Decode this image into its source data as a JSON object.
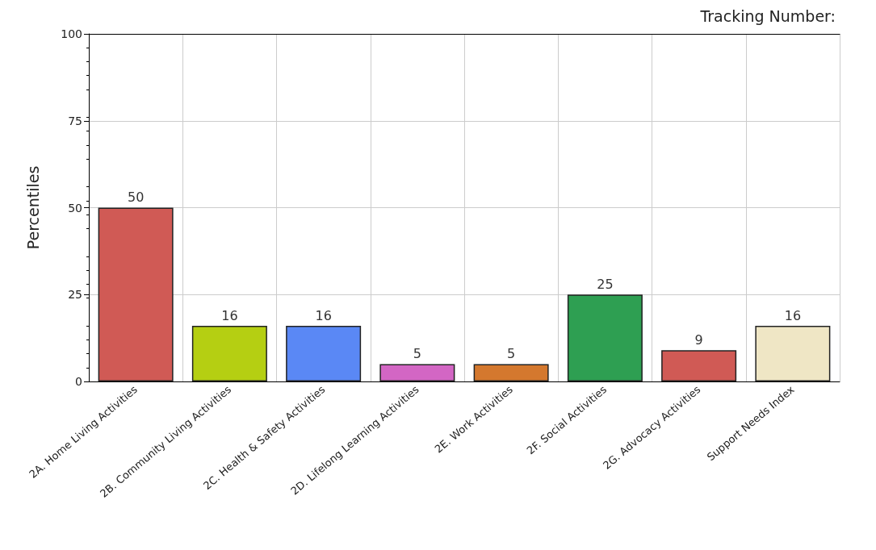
{
  "chart_data": {
    "type": "bar",
    "title": "Tracking Number:",
    "ylabel": "Percentiles",
    "categories": [
      "2A. Home Living Activities",
      "2B. Community Living Activities",
      "2C. Health & Safety Activities",
      "2D. Lifelong Learning Activities",
      "2E. Work Activities",
      "2F. Social Activities",
      "2G. Advocacy Activities",
      "Support Needs Index"
    ],
    "values": [
      50,
      16,
      16,
      5,
      5,
      25,
      9,
      16
    ],
    "colors": [
      "#d05a55",
      "#b5cf12",
      "#5a88f5",
      "#d366c4",
      "#d4782e",
      "#2e9f52",
      "#d05a55",
      "#efe6c5"
    ],
    "ylim": [
      0,
      100
    ],
    "yticks": [
      0,
      25,
      50,
      75,
      100
    ],
    "grid": true,
    "data_labels": true
  }
}
